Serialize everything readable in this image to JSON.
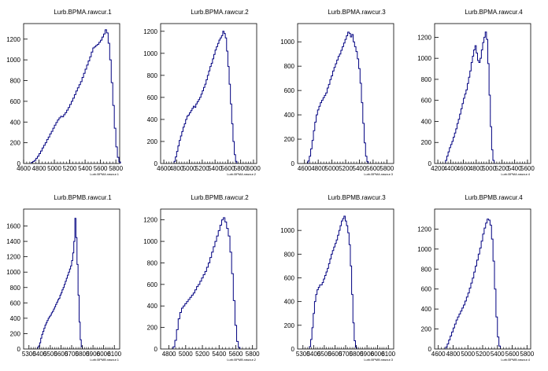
{
  "chart_data": [
    {
      "type": "histogram",
      "title": "Lurb.BPMA.rawcur.1",
      "xlabel": "Lurb.BPMA.rawcur.1",
      "ylabel": "",
      "xlim": [
        4600,
        5850
      ],
      "ylim": [
        0,
        1350
      ],
      "xticks": [
        4600,
        4800,
        5000,
        5200,
        5400,
        5600,
        5800
      ],
      "yticks": [
        200,
        400,
        600,
        800,
        1000,
        1200
      ],
      "bins": {
        "start": 4700,
        "width": 20,
        "values": [
          10,
          20,
          30,
          50,
          70,
          95,
          120,
          150,
          175,
          200,
          230,
          255,
          285,
          310,
          340,
          370,
          395,
          420,
          440,
          455,
          450,
          470,
          490,
          515,
          540,
          570,
          600,
          630,
          665,
          700,
          730,
          760,
          790,
          830,
          870,
          910,
          950,
          990,
          1030,
          1075,
          1115,
          1125,
          1140,
          1150,
          1170,
          1190,
          1220,
          1250,
          1290,
          1260,
          1160,
          1000,
          780,
          560,
          340,
          160,
          60,
          15
        ]
      }
    },
    {
      "type": "histogram",
      "title": "Lurb.BPMA.rawcur.2",
      "xlabel": "Lurb.BPMA.rawcur.2",
      "ylabel": "",
      "xlim": [
        4550,
        6050
      ],
      "ylim": [
        0,
        1270
      ],
      "xticks": [
        4600,
        4800,
        5000,
        5200,
        5400,
        5600,
        5800,
        6000
      ],
      "yticks": [
        200,
        400,
        600,
        800,
        1000,
        1200
      ],
      "bins": {
        "start": 4760,
        "width": 20,
        "values": [
          20,
          60,
          110,
          160,
          210,
          250,
          290,
          330,
          360,
          400,
          430,
          440,
          460,
          480,
          500,
          520,
          510,
          540,
          560,
          580,
          600,
          630,
          660,
          690,
          720,
          760,
          800,
          840,
          880,
          910,
          950,
          990,
          1030,
          1060,
          1090,
          1120,
          1140,
          1160,
          1200,
          1180,
          1140,
          1020,
          880,
          720,
          540,
          360,
          200,
          80,
          20
        ]
      }
    },
    {
      "type": "histogram",
      "title": "Lurb.BPMA.rawcur.3",
      "xlabel": "Lurb.BPMA.rawcur.3",
      "ylabel": "",
      "xlim": [
        4500,
        5900
      ],
      "ylim": [
        0,
        1150
      ],
      "xticks": [
        4600,
        4800,
        5000,
        5200,
        5400,
        5600,
        5800
      ],
      "yticks": [
        200,
        400,
        600,
        800,
        1000
      ],
      "bins": {
        "start": 4650,
        "width": 20,
        "values": [
          20,
          60,
          120,
          190,
          270,
          340,
          400,
          440,
          470,
          500,
          520,
          540,
          560,
          580,
          620,
          650,
          690,
          720,
          760,
          790,
          820,
          850,
          880,
          900,
          930,
          960,
          990,
          1020,
          1050,
          1080,
          1070,
          1040,
          1060,
          1000,
          960,
          920,
          860,
          780,
          660,
          500,
          330,
          170,
          60,
          15
        ]
      }
    },
    {
      "type": "histogram",
      "title": "Lurb.BPMA.rawcur.4",
      "xlabel": "Lurb.BPMA.rawcur.4",
      "ylabel": "",
      "xlim": [
        4150,
        5650
      ],
      "ylim": [
        0,
        1330
      ],
      "xticks": [
        4200,
        4400,
        4600,
        4800,
        5000,
        5200,
        5400,
        5600
      ],
      "yticks": [
        200,
        400,
        600,
        800,
        1000,
        1200
      ],
      "bins": {
        "start": 4320,
        "width": 20,
        "values": [
          30,
          70,
          110,
          150,
          180,
          210,
          250,
          290,
          330,
          380,
          420,
          470,
          520,
          570,
          620,
          660,
          700,
          760,
          820,
          880,
          960,
          1020,
          1080,
          1120,
          1050,
          980,
          960,
          1000,
          1080,
          1150,
          1200,
          1250,
          1180,
          950,
          650,
          350,
          130,
          30
        ]
      }
    },
    {
      "type": "histogram",
      "title": "Lurb.BPMB.rawcur.1",
      "xlabel": "Lurb.BPMB.rawcur.1",
      "ylabel": "",
      "xlim": [
        5250,
        6150
      ],
      "ylim": [
        0,
        1820
      ],
      "xticks": [
        5300,
        5400,
        5500,
        5600,
        5700,
        5800,
        5900,
        6000,
        6100
      ],
      "yticks": [
        200,
        400,
        600,
        800,
        1000,
        1200,
        1400,
        1600
      ],
      "bins": {
        "start": 5380,
        "width": 10,
        "values": [
          20,
          40,
          80,
          140,
          190,
          230,
          270,
          310,
          340,
          370,
          400,
          420,
          440,
          470,
          490,
          520,
          550,
          580,
          610,
          640,
          660,
          700,
          730,
          770,
          800,
          840,
          880,
          920,
          960,
          1000,
          1040,
          1080,
          1150,
          1250,
          1400,
          1700,
          1450,
          1100,
          700,
          350,
          120,
          30
        ]
      }
    },
    {
      "type": "histogram",
      "title": "Lurb.BPMB.rawcur.2",
      "xlabel": "Lurb.BPMB.rawcur.2",
      "ylabel": "",
      "xlim": [
        4700,
        5850
      ],
      "ylim": [
        0,
        1300
      ],
      "xticks": [
        4800,
        5000,
        5200,
        5400,
        5600,
        5800
      ],
      "yticks": [
        200,
        400,
        600,
        800,
        1000,
        1200
      ],
      "bins": {
        "start": 4850,
        "width": 20,
        "values": [
          20,
          80,
          180,
          280,
          340,
          380,
          400,
          420,
          440,
          460,
          480,
          500,
          520,
          550,
          580,
          600,
          630,
          660,
          690,
          720,
          760,
          800,
          850,
          900,
          950,
          1000,
          1050,
          1100,
          1150,
          1200,
          1220,
          1180,
          1120,
          1050,
          900,
          700,
          450,
          220,
          70,
          15
        ]
      }
    },
    {
      "type": "histogram",
      "title": "Lurb.BPMB.rawcur.3",
      "xlabel": "Lurb.BPMB.rawcur.3",
      "ylabel": "",
      "xlim": [
        5250,
        6150
      ],
      "ylim": [
        0,
        1180
      ],
      "xticks": [
        5300,
        5400,
        5500,
        5600,
        5700,
        5800,
        5900,
        6000,
        6100
      ],
      "yticks": [
        200,
        400,
        600,
        800,
        1000
      ],
      "bins": {
        "start": 5360,
        "width": 12,
        "values": [
          20,
          80,
          180,
          300,
          400,
          460,
          500,
          520,
          540,
          540,
          560,
          590,
          620,
          650,
          680,
          720,
          760,
          800,
          830,
          860,
          890,
          920,
          960,
          1000,
          1040,
          1080,
          1100,
          1120,
          1080,
          1040,
          980,
          880,
          700,
          460,
          220,
          70,
          15
        ]
      }
    },
    {
      "type": "histogram",
      "title": "Lurb.BPMB.rawcur.4",
      "xlabel": "Lurb.BPMB.rawcur.4",
      "ylabel": "",
      "xlim": [
        4550,
        5850
      ],
      "ylim": [
        0,
        1400
      ],
      "xticks": [
        4600,
        4800,
        5000,
        5200,
        5400,
        5600,
        5800
      ],
      "yticks": [
        200,
        400,
        600,
        800,
        1000,
        1200
      ],
      "bins": {
        "start": 4700,
        "width": 20,
        "values": [
          20,
          50,
          90,
          130,
          170,
          210,
          250,
          290,
          320,
          350,
          380,
          410,
          440,
          480,
          520,
          560,
          610,
          660,
          710,
          770,
          830,
          890,
          950,
          1010,
          1080,
          1150,
          1210,
          1260,
          1300,
          1290,
          1240,
          1100,
          880,
          600,
          320,
          120,
          30
        ]
      }
    }
  ]
}
